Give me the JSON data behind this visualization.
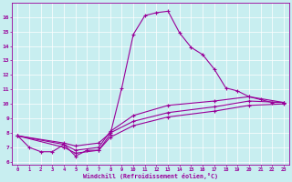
{
  "title": "",
  "xlabel": "Windchill (Refroidissement éolien,°C)",
  "ylabel": "",
  "bg_color": "#c8eef0",
  "line_color": "#990099",
  "xlim": [
    -0.5,
    23.5
  ],
  "ylim": [
    5.8,
    17.0
  ],
  "yticks": [
    6,
    7,
    8,
    9,
    10,
    11,
    12,
    13,
    14,
    15,
    16
  ],
  "xticks": [
    0,
    1,
    2,
    3,
    4,
    5,
    6,
    7,
    8,
    9,
    10,
    11,
    12,
    13,
    14,
    15,
    16,
    17,
    18,
    19,
    20,
    21,
    22,
    23
  ],
  "series1_x": [
    0,
    1,
    2,
    3,
    4,
    5,
    6,
    7,
    8,
    9,
    10,
    11,
    12,
    13,
    14,
    15,
    16,
    17,
    18,
    19,
    20,
    21,
    22,
    23
  ],
  "series1_y": [
    7.8,
    7.0,
    6.7,
    6.7,
    7.2,
    6.4,
    6.8,
    6.8,
    7.9,
    11.1,
    14.8,
    16.1,
    16.3,
    16.4,
    14.9,
    13.9,
    13.4,
    12.4,
    11.1,
    10.9,
    10.5,
    10.3,
    10.1,
    10.1
  ],
  "series2_x": [
    0,
    4,
    5,
    7,
    8,
    10,
    13,
    17,
    20,
    23
  ],
  "series2_y": [
    7.8,
    7.2,
    6.8,
    7.0,
    8.1,
    9.2,
    9.9,
    10.2,
    10.5,
    10.1
  ],
  "series3_x": [
    0,
    4,
    5,
    7,
    8,
    10,
    13,
    17,
    20,
    23
  ],
  "series3_y": [
    7.8,
    7.0,
    6.6,
    6.8,
    7.7,
    8.5,
    9.1,
    9.5,
    9.9,
    10.0
  ],
  "series4_x": [
    0,
    4,
    5,
    7,
    8,
    10,
    13,
    17,
    20,
    23
  ],
  "series4_y": [
    7.8,
    7.3,
    7.1,
    7.3,
    8.0,
    8.8,
    9.4,
    9.8,
    10.2,
    10.1
  ]
}
